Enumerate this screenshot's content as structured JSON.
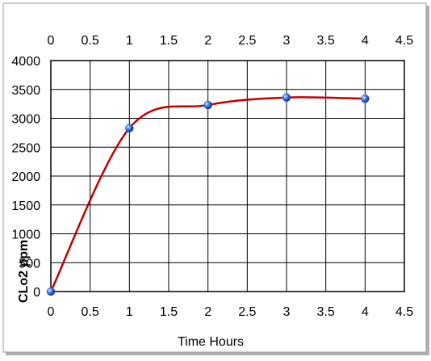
{
  "chart_data": {
    "type": "line",
    "x_label": "Time Hours",
    "y_label": "CLo2 ppm",
    "x": [
      0,
      1,
      2,
      3,
      4
    ],
    "series": [
      {
        "color": "#c00000",
        "marker_color": "#1f5fd6",
        "values": [
          0,
          2830,
          3230,
          3360,
          3340
        ]
      }
    ],
    "xlim": [
      0,
      4.5
    ],
    "xticks": [
      0,
      0.5,
      1,
      1.5,
      2,
      2.5,
      3,
      3.5,
      4,
      4.5
    ],
    "ylim": [
      0,
      4000
    ],
    "yticks": [
      0,
      500,
      1000,
      1500,
      2000,
      2500,
      3000,
      3500,
      4000
    ],
    "grid": true,
    "smooth": true,
    "top_axis": true
  }
}
